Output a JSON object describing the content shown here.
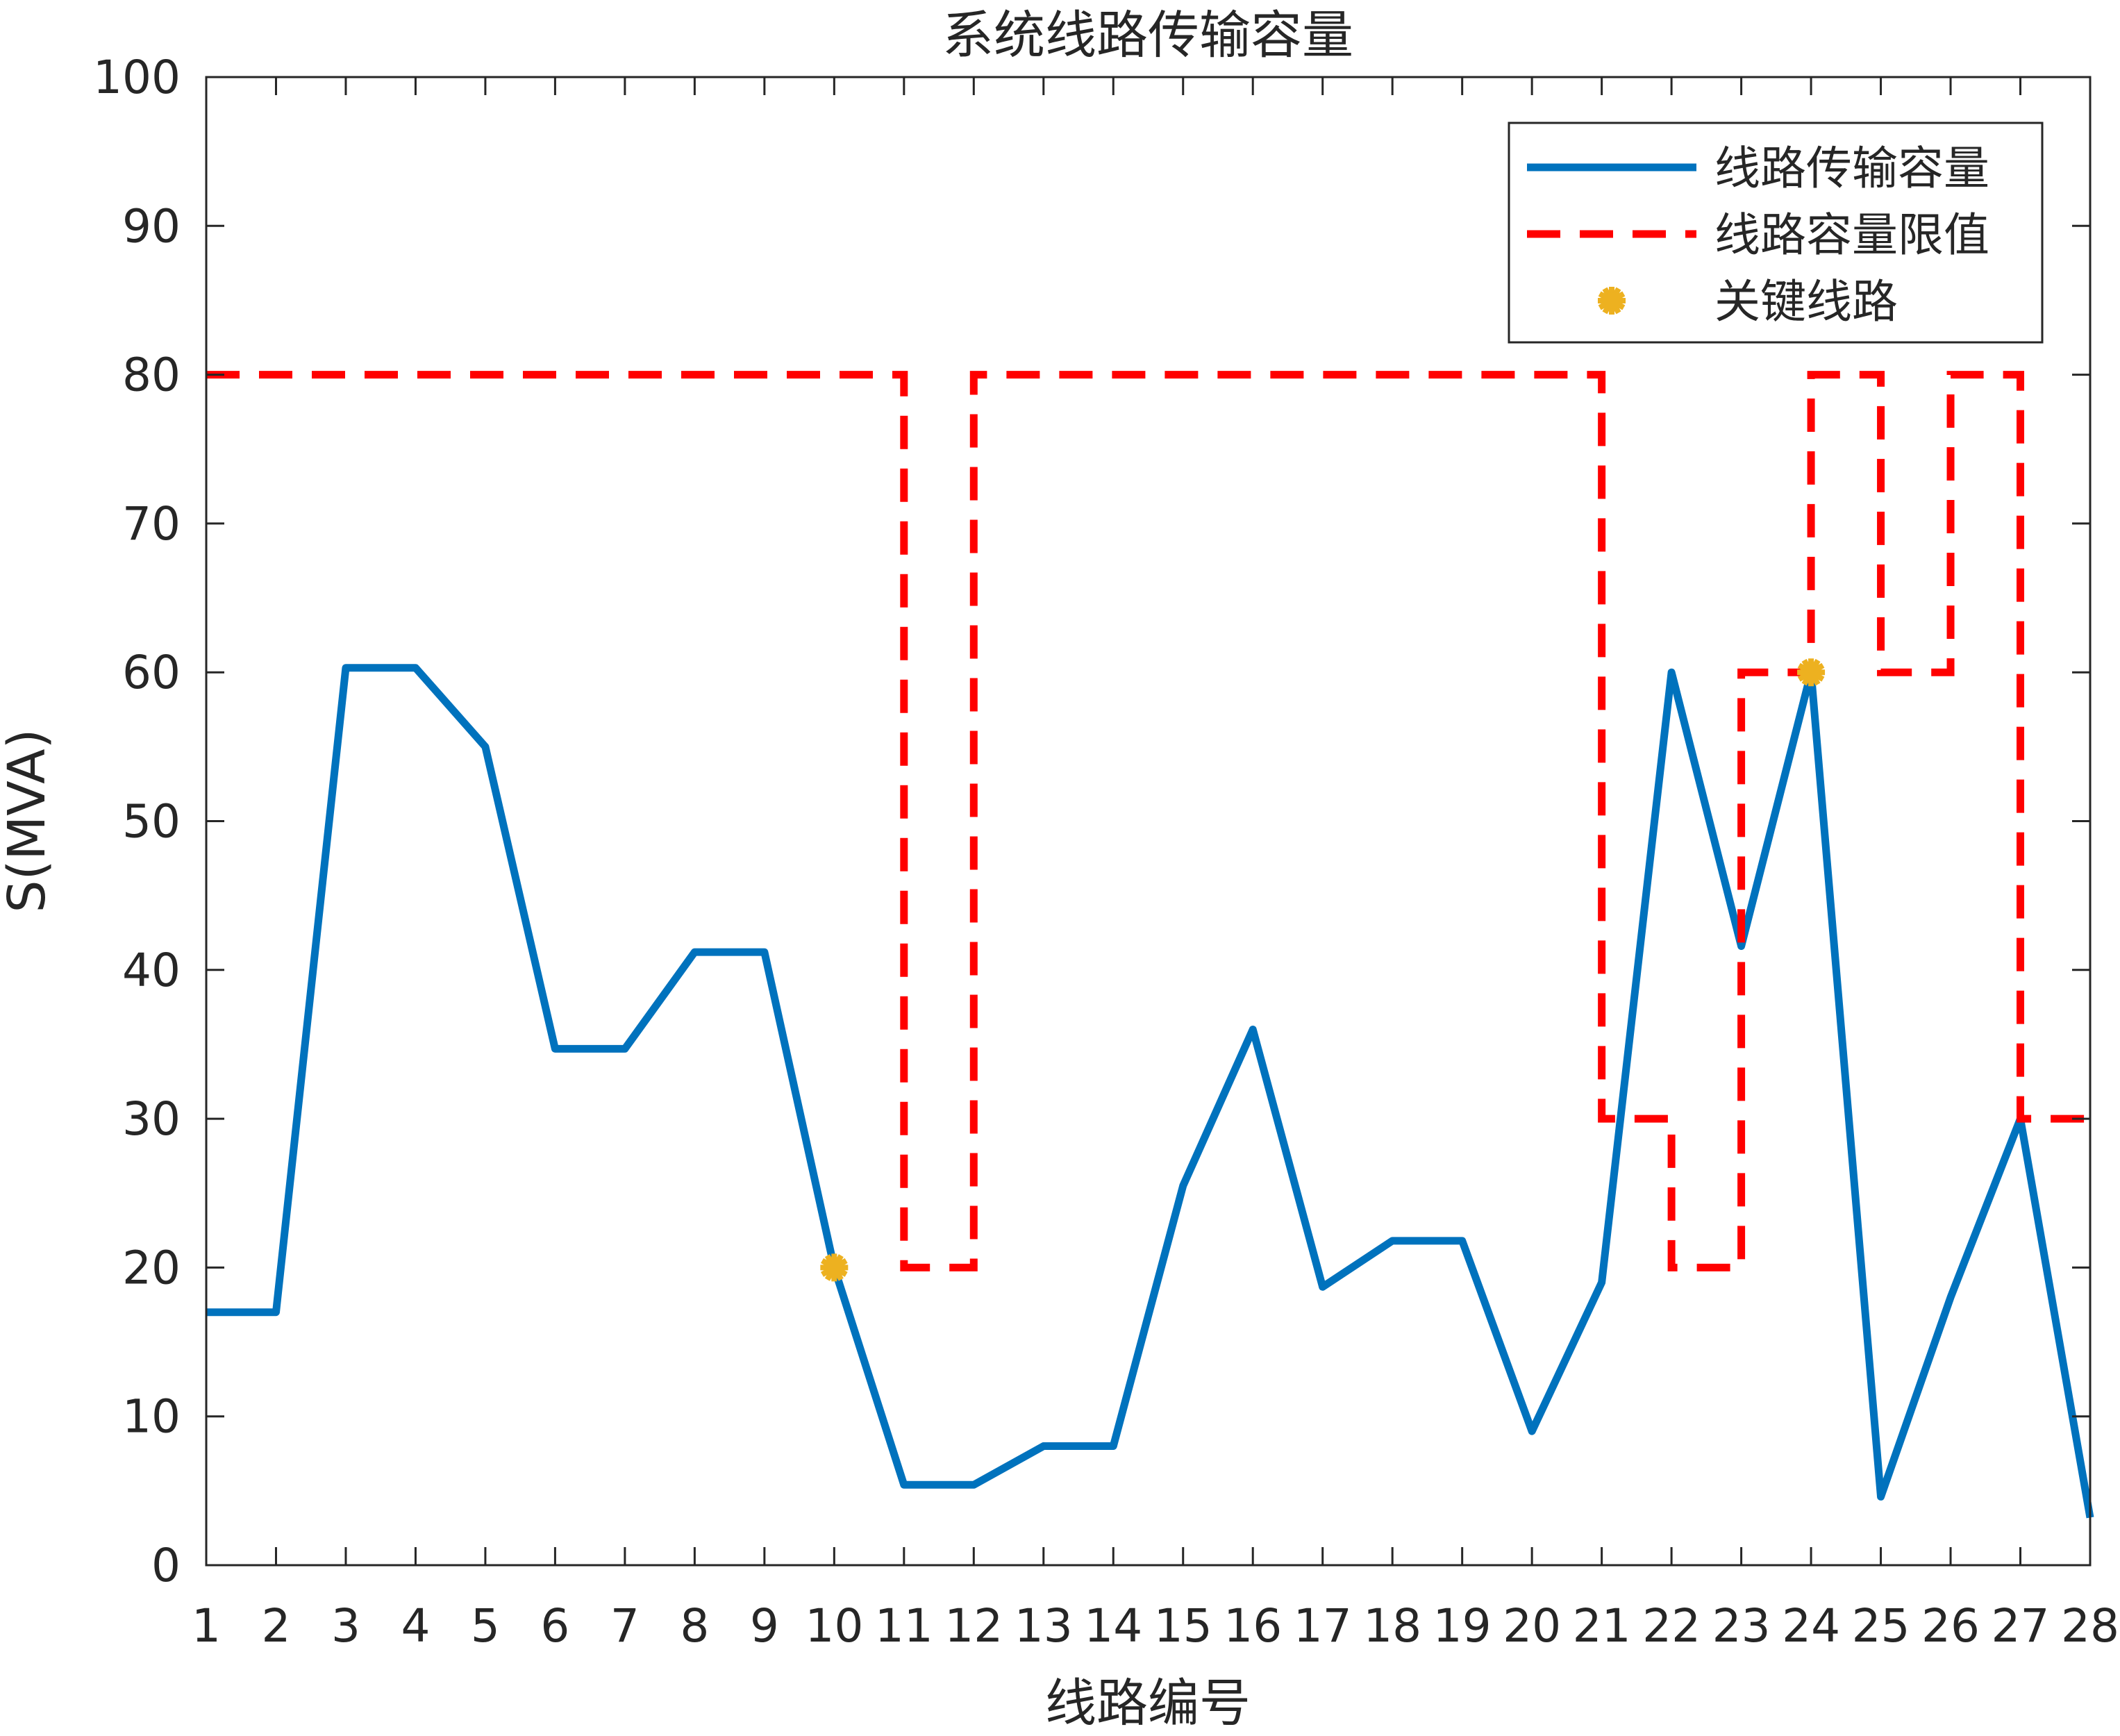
{
  "chart_data": {
    "type": "line",
    "title": "系统线路传输容量",
    "xlabel": "线路编号",
    "ylabel": "S(MVA)",
    "xlim": [
      1,
      28
    ],
    "ylim": [
      0,
      100
    ],
    "x_ticks": [
      1,
      2,
      3,
      4,
      5,
      6,
      7,
      8,
      9,
      10,
      11,
      12,
      13,
      14,
      15,
      16,
      17,
      18,
      19,
      20,
      21,
      22,
      23,
      24,
      25,
      26,
      27,
      28
    ],
    "y_ticks": [
      0,
      10,
      20,
      30,
      40,
      50,
      60,
      70,
      80,
      90,
      100
    ],
    "grid": false,
    "legend_position": "top-right",
    "series": [
      {
        "name": "线路传输容量",
        "style": "solid-line",
        "color": "#0072BD",
        "x": [
          1,
          2,
          3,
          4,
          5,
          6,
          7,
          8,
          9,
          10,
          11,
          12,
          13,
          14,
          15,
          16,
          17,
          18,
          19,
          20,
          21,
          22,
          23,
          24,
          25,
          26,
          27,
          28
        ],
        "y": [
          17,
          17,
          60.3,
          60.3,
          55,
          34.7,
          34.7,
          41.2,
          41.2,
          20,
          5.4,
          5.4,
          8,
          8,
          25.5,
          36,
          18.7,
          21.8,
          21.8,
          9,
          19,
          60,
          41.6,
          60,
          4.6,
          18,
          30,
          3.2
        ]
      },
      {
        "name": "线路容量限值",
        "style": "dashed-step",
        "color": "#FF0000",
        "x": [
          1,
          2,
          3,
          4,
          5,
          6,
          7,
          8,
          9,
          10,
          11,
          12,
          13,
          14,
          15,
          16,
          17,
          18,
          19,
          20,
          21,
          22,
          23,
          24,
          25,
          26,
          27,
          28
        ],
        "y": [
          80,
          80,
          80,
          80,
          80,
          80,
          80,
          80,
          80,
          80,
          20,
          80,
          80,
          80,
          80,
          80,
          80,
          80,
          80,
          80,
          30,
          20,
          60,
          80,
          60,
          80,
          30,
          30
        ]
      },
      {
        "name": "关键线路",
        "style": "marker",
        "color": "#EDB120",
        "x": [
          10,
          24
        ],
        "y": [
          20,
          60
        ]
      }
    ]
  }
}
